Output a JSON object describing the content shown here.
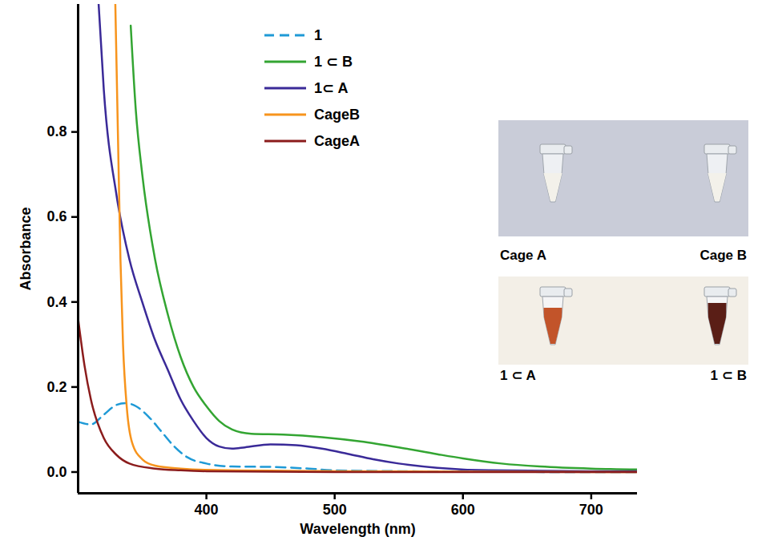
{
  "chart_data": {
    "type": "line",
    "x_label": "Wavelength (nm)",
    "y_label": "Absorbance",
    "xlim": [
      300,
      736
    ],
    "xticks": [
      400,
      500,
      600,
      700
    ],
    "ylim": [
      -0.05,
      1.1
    ],
    "yticks": [
      {
        "value": 0,
        "label": "0.0"
      },
      0.2,
      0.4,
      0.6,
      0.8
    ],
    "grid": false,
    "legend": "top",
    "series": [
      {
        "name": "1",
        "color": "#1f9ad6",
        "line_style": "dashed",
        "x": [
          300,
          310,
          320,
          330,
          337,
          345,
          355,
          365,
          375,
          385,
          400,
          420,
          450,
          480,
          500,
          550,
          600,
          700,
          736
        ],
        "values": [
          0.118,
          0.112,
          0.135,
          0.158,
          0.162,
          0.155,
          0.13,
          0.095,
          0.06,
          0.035,
          0.02,
          0.013,
          0.012,
          0.008,
          0.004,
          0.002,
          0.001,
          0,
          0
        ]
      },
      {
        "name": "1 ⊂ B",
        "color": "#33a532",
        "line_style": "solid",
        "x": [
          341,
          345,
          350,
          360,
          370,
          380,
          390,
          400,
          410,
          420,
          435,
          460,
          490,
          520,
          550,
          580,
          600,
          630,
          660,
          700,
          736
        ],
        "values": [
          1.05,
          0.85,
          0.7,
          0.5,
          0.37,
          0.27,
          0.2,
          0.155,
          0.12,
          0.1,
          0.09,
          0.088,
          0.082,
          0.072,
          0.058,
          0.042,
          0.032,
          0.02,
          0.013,
          0.008,
          0.006
        ]
      },
      {
        "name": "1⊂ A",
        "color": "#3a2a98",
        "line_style": "solid",
        "x": [
          316,
          320,
          330,
          340,
          350,
          360,
          370,
          380,
          390,
          400,
          410,
          420,
          430,
          450,
          470,
          490,
          510,
          530,
          550,
          580,
          620,
          700,
          736
        ],
        "values": [
          1.1,
          0.9,
          0.65,
          0.5,
          0.4,
          0.31,
          0.24,
          0.17,
          0.12,
          0.08,
          0.06,
          0.055,
          0.058,
          0.065,
          0.063,
          0.055,
          0.043,
          0.03,
          0.02,
          0.01,
          0.004,
          0.002,
          0.002
        ]
      },
      {
        "name": "CageB",
        "color": "#f7941d",
        "line_style": "solid",
        "x": [
          329,
          331,
          333,
          335,
          338,
          342,
          350,
          360,
          380,
          400,
          500,
          736
        ],
        "values": [
          1.1,
          0.8,
          0.5,
          0.3,
          0.15,
          0.07,
          0.03,
          0.015,
          0.008,
          0.005,
          0.002,
          0
        ]
      },
      {
        "name": "CageA",
        "color": "#8b1c1c",
        "line_style": "solid",
        "x": [
          300,
          305,
          310,
          320,
          330,
          340,
          360,
          380,
          400,
          500,
          736
        ],
        "values": [
          0.36,
          0.25,
          0.17,
          0.08,
          0.04,
          0.02,
          0.008,
          0.004,
          0.002,
          0,
          0
        ]
      }
    ],
    "inset": {
      "labels_top": [
        "Cage A",
        "Cage B"
      ],
      "labels_bottom": [
        "1 ⊂ A",
        "1 ⊂ B"
      ]
    }
  }
}
